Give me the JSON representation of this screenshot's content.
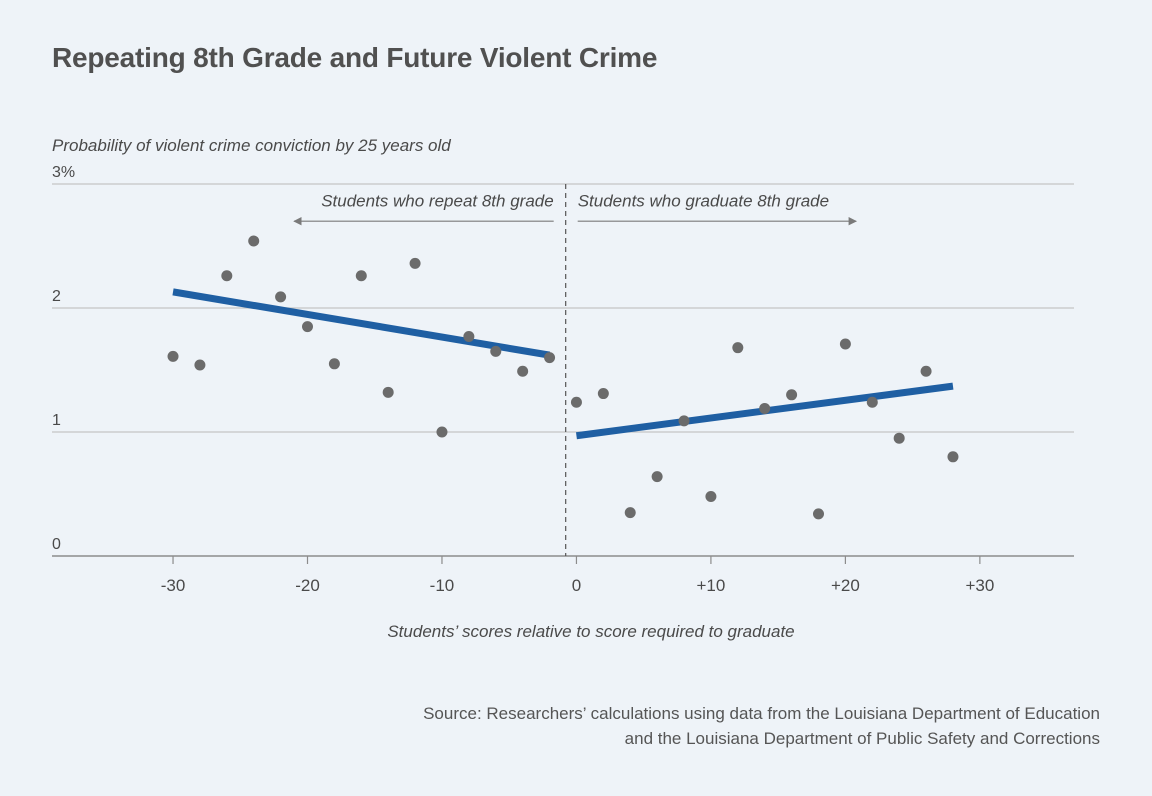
{
  "chart_data": {
    "type": "scatter",
    "title": "Repeating 8th Grade and Future Violent Crime",
    "ylabel": "Probability of violent crime conviction by 25 years old",
    "xlabel": "Students’ scores relative to score required to graduate",
    "xlim": [
      -39,
      37
    ],
    "ylim": [
      0,
      3
    ],
    "grid": true,
    "x_ticks": [
      {
        "value": -30,
        "label": "-30"
      },
      {
        "value": -20,
        "label": "-20"
      },
      {
        "value": -10,
        "label": "-10"
      },
      {
        "value": 0,
        "label": "0"
      },
      {
        "value": 10,
        "label": "+10"
      },
      {
        "value": 20,
        "label": "+20"
      },
      {
        "value": 30,
        "label": "+30"
      }
    ],
    "y_ticks": [
      {
        "value": 0,
        "label": "0"
      },
      {
        "value": 1,
        "label": "1"
      },
      {
        "value": 2,
        "label": "2"
      },
      {
        "value": 3,
        "label": "3%"
      }
    ],
    "cutoff_x": -0.8,
    "annotations": {
      "left": "Students who repeat 8th grade",
      "right": "Students who graduate 8th grade"
    },
    "series": [
      {
        "points": [
          [
            -30,
            1.61
          ],
          [
            -28,
            1.54
          ],
          [
            -26,
            2.26
          ],
          [
            -24,
            2.54
          ],
          [
            -22,
            2.09
          ],
          [
            -20,
            1.85
          ],
          [
            -18,
            1.55
          ],
          [
            -16,
            2.26
          ],
          [
            -14,
            1.32
          ],
          [
            -12,
            2.36
          ],
          [
            -10,
            1.0
          ],
          [
            -8,
            1.77
          ],
          [
            -6,
            1.65
          ],
          [
            -4,
            1.49
          ],
          [
            -2,
            1.6
          ],
          [
            0,
            1.24
          ],
          [
            2,
            1.31
          ],
          [
            4,
            0.35
          ],
          [
            6,
            0.64
          ],
          [
            8,
            1.09
          ],
          [
            10,
            0.48
          ],
          [
            12,
            1.68
          ],
          [
            14,
            1.19
          ],
          [
            16,
            1.3
          ],
          [
            18,
            0.34
          ],
          [
            20,
            1.71
          ],
          [
            22,
            1.24
          ],
          [
            24,
            0.95
          ],
          [
            26,
            1.49
          ],
          [
            28,
            0.8
          ]
        ]
      }
    ],
    "fit_lines": [
      {
        "x": [
          -30,
          -2
        ],
        "y": [
          2.13,
          1.62
        ]
      },
      {
        "x": [
          0,
          28
        ],
        "y": [
          0.97,
          1.37
        ]
      }
    ],
    "colors": {
      "points": "#6b6b6b",
      "fit": "#1f5fa3",
      "grid": "#c4c4c4",
      "axis": "#8c8c8c",
      "text": "#4a4a4a"
    }
  },
  "source": {
    "line1": "Source: Researchers’ calculations using data from the Louisiana Department of Education",
    "line2": "and the Louisiana Department of Public Safety and Corrections"
  }
}
